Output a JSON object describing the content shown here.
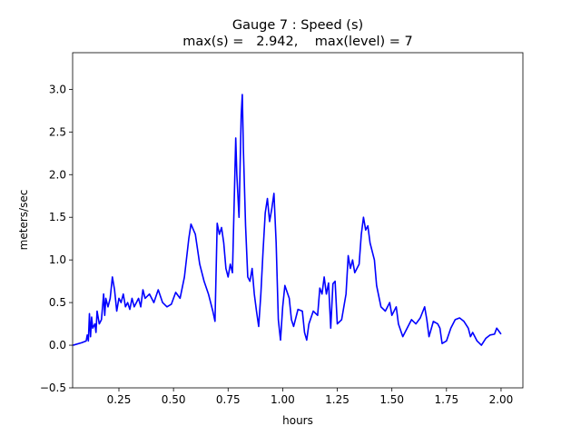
{
  "chart_data": {
    "type": "line",
    "title": "Gauge 7 : Speed (s)",
    "subtitle": "max(s) =   2.942,    max(level) = 7",
    "x_label": "hours",
    "y_label": "meters/sec",
    "xlim": [
      0.038,
      2.1
    ],
    "ylim": [
      -0.5,
      3.43
    ],
    "xticks": [
      {
        "value": 0.25,
        "label": "0.25"
      },
      {
        "value": 0.5,
        "label": "0.50"
      },
      {
        "value": 0.75,
        "label": "0.75"
      },
      {
        "value": 1.0,
        "label": "1.00"
      },
      {
        "value": 1.25,
        "label": "1.25"
      },
      {
        "value": 1.5,
        "label": "1.50"
      },
      {
        "value": 1.75,
        "label": "1.75"
      },
      {
        "value": 2.0,
        "label": "2.00"
      }
    ],
    "yticks": [
      {
        "value": -0.5,
        "label": "−0.5"
      },
      {
        "value": 0,
        "label": "0.0"
      },
      {
        "value": 0.5,
        "label": "0.5"
      },
      {
        "value": 1.0,
        "label": "1.0"
      },
      {
        "value": 1.5,
        "label": "1.5"
      },
      {
        "value": 2.0,
        "label": "2.0"
      },
      {
        "value": 2.5,
        "label": "2.5"
      },
      {
        "value": 3.0,
        "label": "3.0"
      }
    ],
    "grid": false,
    "series": [
      {
        "color": "#0000ff",
        "x": [
          0.04,
          0.08,
          0.1,
          0.105,
          0.11,
          0.115,
          0.12,
          0.125,
          0.13,
          0.14,
          0.145,
          0.15,
          0.16,
          0.17,
          0.18,
          0.185,
          0.19,
          0.2,
          0.21,
          0.22,
          0.23,
          0.24,
          0.25,
          0.26,
          0.27,
          0.28,
          0.29,
          0.3,
          0.31,
          0.32,
          0.33,
          0.34,
          0.35,
          0.36,
          0.37,
          0.39,
          0.41,
          0.43,
          0.45,
          0.47,
          0.49,
          0.51,
          0.53,
          0.55,
          0.57,
          0.58,
          0.6,
          0.62,
          0.64,
          0.66,
          0.68,
          0.69,
          0.7,
          0.71,
          0.72,
          0.73,
          0.74,
          0.75,
          0.76,
          0.77,
          0.785,
          0.79,
          0.8,
          0.81,
          0.815,
          0.82,
          0.83,
          0.84,
          0.85,
          0.86,
          0.87,
          0.88,
          0.89,
          0.9,
          0.91,
          0.92,
          0.93,
          0.94,
          0.95,
          0.96,
          0.97,
          0.98,
          0.99,
          1.0,
          1.01,
          1.03,
          1.04,
          1.05,
          1.07,
          1.09,
          1.1,
          1.11,
          1.12,
          1.14,
          1.16,
          1.17,
          1.18,
          1.19,
          1.2,
          1.21,
          1.22,
          1.23,
          1.24,
          1.25,
          1.27,
          1.29,
          1.3,
          1.31,
          1.32,
          1.33,
          1.35,
          1.36,
          1.37,
          1.38,
          1.39,
          1.4,
          1.42,
          1.43,
          1.45,
          1.47,
          1.49,
          1.5,
          1.52,
          1.53,
          1.55,
          1.57,
          1.59,
          1.61,
          1.63,
          1.65,
          1.66,
          1.67,
          1.69,
          1.71,
          1.72,
          1.73,
          1.75,
          1.77,
          1.79,
          1.81,
          1.83,
          1.85,
          1.86,
          1.87,
          1.89,
          1.91,
          1.93,
          1.95,
          1.97,
          1.98,
          2.0
        ],
        "values": [
          0.0,
          0.03,
          0.05,
          0.12,
          0.05,
          0.37,
          0.1,
          0.33,
          0.2,
          0.25,
          0.15,
          0.4,
          0.25,
          0.3,
          0.6,
          0.35,
          0.55,
          0.45,
          0.55,
          0.8,
          0.65,
          0.4,
          0.55,
          0.5,
          0.6,
          0.45,
          0.5,
          0.42,
          0.55,
          0.45,
          0.5,
          0.55,
          0.45,
          0.65,
          0.55,
          0.6,
          0.5,
          0.65,
          0.5,
          0.45,
          0.48,
          0.62,
          0.55,
          0.8,
          1.25,
          1.42,
          1.3,
          0.95,
          0.75,
          0.6,
          0.4,
          0.28,
          1.43,
          1.3,
          1.38,
          1.2,
          0.9,
          0.8,
          0.95,
          0.85,
          2.43,
          2.0,
          1.5,
          2.7,
          2.94,
          2.3,
          1.4,
          0.8,
          0.75,
          0.9,
          0.6,
          0.4,
          0.22,
          0.6,
          1.1,
          1.55,
          1.72,
          1.45,
          1.6,
          1.78,
          1.2,
          0.3,
          0.06,
          0.45,
          0.7,
          0.55,
          0.3,
          0.22,
          0.42,
          0.4,
          0.15,
          0.06,
          0.25,
          0.4,
          0.35,
          0.67,
          0.6,
          0.8,
          0.6,
          0.73,
          0.2,
          0.72,
          0.75,
          0.25,
          0.3,
          0.6,
          1.05,
          0.9,
          1.0,
          0.85,
          0.95,
          1.3,
          1.5,
          1.35,
          1.4,
          1.2,
          1.0,
          0.7,
          0.45,
          0.4,
          0.5,
          0.35,
          0.45,
          0.25,
          0.1,
          0.2,
          0.3,
          0.25,
          0.32,
          0.45,
          0.3,
          0.1,
          0.28,
          0.25,
          0.2,
          0.02,
          0.05,
          0.2,
          0.3,
          0.32,
          0.28,
          0.2,
          0.1,
          0.15,
          0.05,
          0.0,
          0.08,
          0.12,
          0.13,
          0.2,
          0.13
        ]
      }
    ]
  }
}
